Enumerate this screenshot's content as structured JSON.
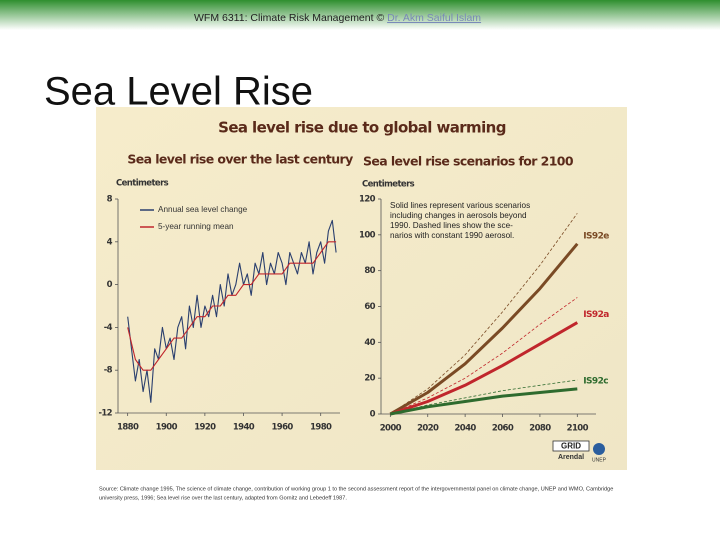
{
  "header": {
    "text": "WFM 6311: Climate Risk Management © ",
    "link": "Dr. Akm Saiful Islam"
  },
  "slide_title": "Sea Level Rise",
  "figure_title": "Sea level rise due to global warming",
  "source": [
    "Source: Climate change 1995, The science of climate change, contribution of working group 1 to the second assessment report of the intergovernmental panel on climate change, UNEP and WMO, Cambridge",
    "university press, 1996; Sea level rise over the last century, adapted from Gornitz and Lebedeff 1987."
  ],
  "logo": [
    "GRID",
    "Arendal",
    "UNEP"
  ],
  "chart_data": [
    {
      "type": "line",
      "title": "Sea level rise over the last century",
      "ylabel": "Centimeters",
      "xlim": [
        1875,
        1990
      ],
      "xticks": [
        1880,
        1900,
        1920,
        1940,
        1960,
        1980
      ],
      "ylim": [
        -12,
        8
      ],
      "yticks": [
        8,
        4,
        0,
        -4,
        -8,
        -12
      ],
      "legend": "top-left",
      "series": [
        {
          "name": "Annual sea level change",
          "color": "#2a3f6e",
          "x": [
            1880,
            1882,
            1884,
            1886,
            1888,
            1890,
            1892,
            1894,
            1896,
            1898,
            1900,
            1902,
            1904,
            1906,
            1908,
            1910,
            1912,
            1914,
            1916,
            1918,
            1920,
            1922,
            1924,
            1926,
            1928,
            1930,
            1932,
            1934,
            1936,
            1938,
            1940,
            1942,
            1944,
            1946,
            1948,
            1950,
            1952,
            1954,
            1956,
            1958,
            1960,
            1962,
            1964,
            1966,
            1968,
            1970,
            1972,
            1974,
            1976,
            1978,
            1980,
            1982,
            1984,
            1986,
            1988
          ],
          "values": [
            -3,
            -6,
            -9,
            -7,
            -10,
            -8,
            -11,
            -6,
            -7,
            -4,
            -6,
            -5,
            -7,
            -4,
            -3,
            -6,
            -2,
            -4,
            -1,
            -4,
            -2,
            -3,
            -1,
            -3,
            0,
            -2,
            1,
            -1,
            0,
            2,
            0,
            1,
            -1,
            2,
            1,
            3,
            0,
            2,
            1,
            3,
            2,
            0,
            3,
            2,
            1,
            3,
            2,
            4,
            1,
            3,
            4,
            2,
            5,
            6,
            3
          ]
        },
        {
          "name": "5-year running mean",
          "color": "#c0262c",
          "x": [
            1880,
            1884,
            1888,
            1892,
            1896,
            1900,
            1904,
            1908,
            1912,
            1916,
            1920,
            1924,
            1928,
            1932,
            1936,
            1940,
            1944,
            1948,
            1952,
            1956,
            1960,
            1964,
            1968,
            1972,
            1976,
            1980,
            1984,
            1988
          ],
          "values": [
            -4,
            -7,
            -8,
            -8,
            -7,
            -6,
            -5,
            -5,
            -4,
            -3,
            -3,
            -2,
            -2,
            -1,
            -1,
            0,
            0,
            1,
            1,
            1,
            1,
            2,
            2,
            2,
            2,
            3,
            4,
            4
          ]
        }
      ]
    },
    {
      "type": "line",
      "title": "Sea level rise scenarios for 2100",
      "ylabel": "Centimeters",
      "annotation": [
        "Solid lines represent various scenarios",
        "including changes in aerosols beyond",
        "1990. Dashed lines show the sce-",
        "narios with constant 1990 aerosol."
      ],
      "x": [
        2000,
        2020,
        2040,
        2060,
        2080,
        2100
      ],
      "xlim": [
        1995,
        2110
      ],
      "xticks": [
        2000,
        2020,
        2040,
        2060,
        2080,
        2100
      ],
      "ylim": [
        0,
        120
      ],
      "yticks": [
        0,
        20,
        40,
        60,
        80,
        100,
        120
      ],
      "series": [
        {
          "color": "#7a4a25",
          "dashed": true,
          "values": [
            0,
            14,
            33,
            57,
            83,
            112
          ]
        },
        {
          "color": "#c0262c",
          "dashed": true,
          "values": [
            0,
            9,
            20,
            34,
            50,
            65
          ]
        },
        {
          "color": "#2e6b2e",
          "dashed": true,
          "values": [
            0,
            5,
            9,
            13,
            16,
            19
          ]
        },
        {
          "name": "IS92e",
          "color": "#7a4a25",
          "values": [
            0,
            12,
            28,
            48,
            70,
            95
          ]
        },
        {
          "name": "IS92a",
          "color": "#c0262c",
          "values": [
            0,
            7,
            16,
            27,
            39,
            51
          ]
        },
        {
          "name": "IS92c",
          "color": "#2e6b2e",
          "values": [
            0,
            4,
            7,
            10,
            12,
            14
          ]
        }
      ]
    }
  ]
}
